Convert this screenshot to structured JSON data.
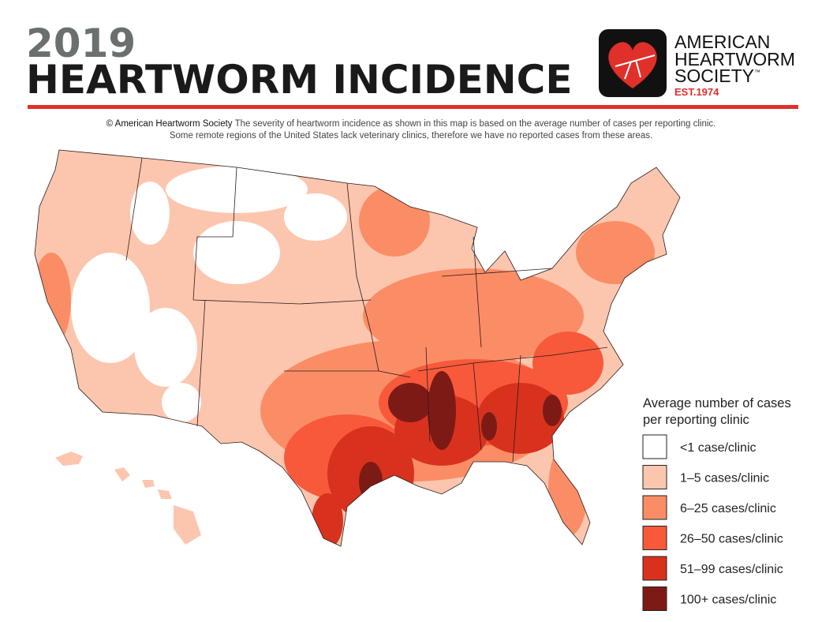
{
  "header": {
    "year": "2019",
    "title": "HEARTWORM INCIDENCE",
    "logo": {
      "lines": [
        "AMERICAN",
        "HEARTWORM",
        "SOCIETY"
      ],
      "trademark": "™",
      "established": "EST.1974"
    }
  },
  "caption": {
    "source": "© American Heartworm Society",
    "line1": "The severity of heartworm incidence as shown in this map is based on the average number of cases per reporting clinic.",
    "line2": "Some remote regions of the United States lack veterinary clinics, therefore we have no reported cases from these areas."
  },
  "legend": {
    "title_lines": [
      "Average number of cases",
      "per reporting clinic"
    ],
    "items": [
      {
        "label": "<1 case/clinic",
        "color": "#ffffff"
      },
      {
        "label": "1–5 cases/clinic",
        "color": "#fcc6ae"
      },
      {
        "label": "6–25 cases/clinic",
        "color": "#fb8d66"
      },
      {
        "label": "26–50 cases/clinic",
        "color": "#f8593b"
      },
      {
        "label": "51–99 cases/clinic",
        "color": "#d8321e"
      },
      {
        "label": "100+ cases/clinic",
        "color": "#7e1a15"
      }
    ]
  }
}
